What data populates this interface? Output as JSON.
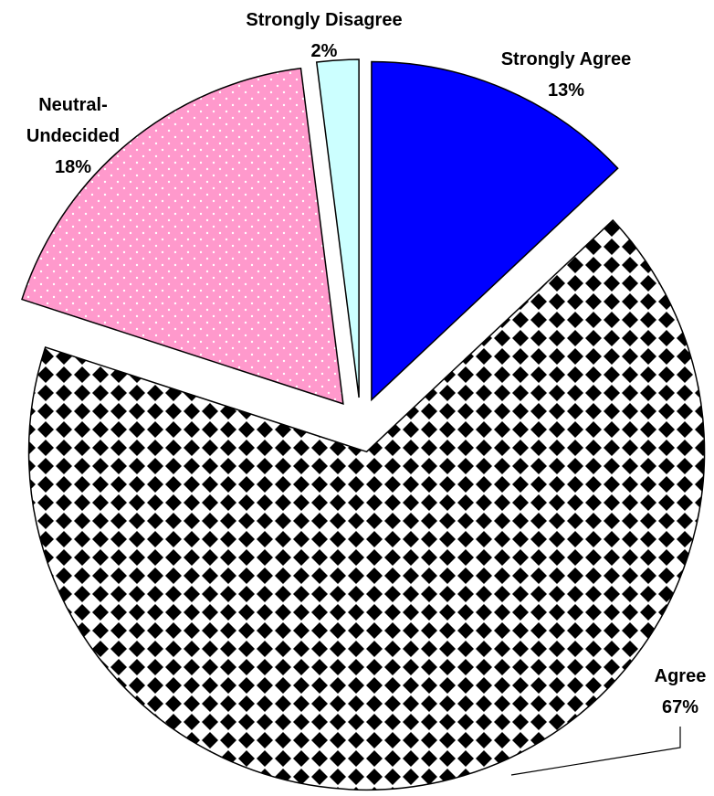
{
  "chart_data": {
    "type": "pie",
    "categories": [
      "Strongly Agree",
      "Agree",
      "Neutral-Undecided",
      "Strongly Disagree"
    ],
    "values": [
      13,
      67,
      18,
      2
    ],
    "value_labels": [
      "13%",
      "67%",
      "18%",
      "2%"
    ],
    "colors": [
      "#0000ff",
      "#000000",
      "#ff99cc",
      "#ccffff"
    ]
  }
}
